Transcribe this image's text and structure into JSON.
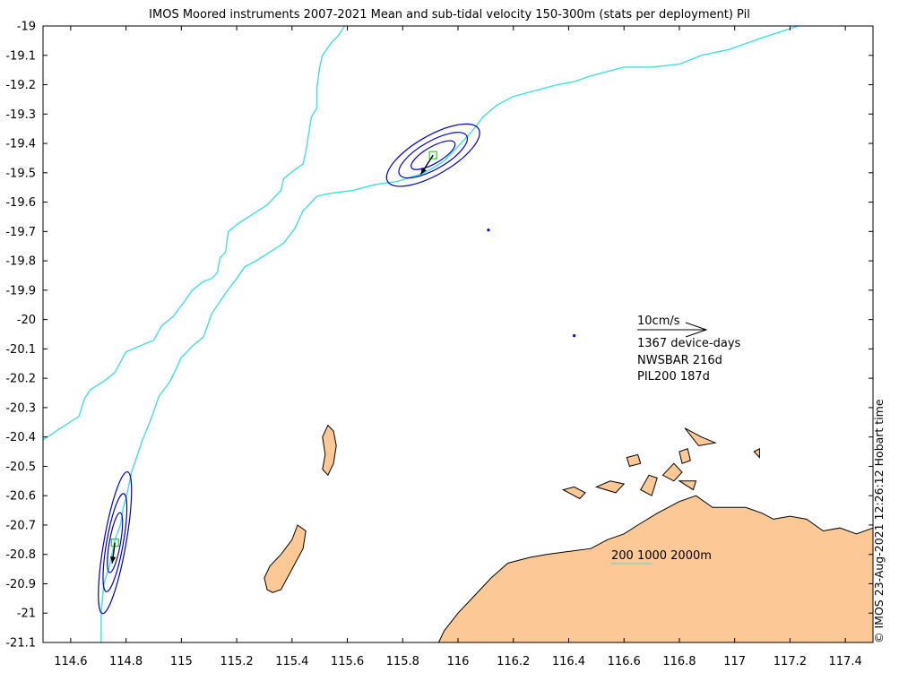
{
  "chart_data": {
    "type": "map",
    "title": "IMOS Moored instruments 2007-2021 Mean and sub-tidal velocity 150-300m (stats per deployment) Pil",
    "side_note": "© IMOS 23-Aug-2021 12:26:12 Hobart time",
    "xlim": [
      114.5,
      117.5
    ],
    "ylim": [
      -21.1,
      -19.0
    ],
    "xticks": [
      114.6,
      114.8,
      115,
      115.2,
      115.4,
      115.6,
      115.8,
      116,
      116.2,
      116.4,
      116.6,
      116.8,
      117,
      117.2,
      117.4
    ],
    "xtick_labels": [
      "114.6",
      "114.8",
      "115",
      "115.2",
      "115.4",
      "115.6",
      "115.8",
      "116",
      "116.2",
      "116.4",
      "116.6",
      "116.8",
      "117",
      "117.2",
      "117.4"
    ],
    "yticks": [
      -19,
      -19.1,
      -19.2,
      -19.3,
      -19.4,
      -19.5,
      -19.6,
      -19.7,
      -19.8,
      -19.9,
      -20,
      -20.1,
      -20.2,
      -20.3,
      -20.4,
      -20.5,
      -20.6,
      -20.7,
      -20.8,
      -20.9,
      -21,
      -21.1
    ],
    "ytick_labels": [
      "-19",
      "-19.1",
      "-19.2",
      "-19.3",
      "-19.4",
      "-19.5",
      "-19.6",
      "-19.7",
      "-19.8",
      "-19.9",
      "-20",
      "-20.1",
      "-20.2",
      "-20.3",
      "-20.4",
      "-20.5",
      "-20.6",
      "-20.7",
      "-20.8",
      "-20.9",
      "-21",
      "-21.1"
    ],
    "scale_arrow_label": "10cm/s",
    "stats_lines": [
      "1367 device-days",
      "NWSBAR 216d",
      "PIL200 187d"
    ],
    "contour_legend_label": "200 1000 2000m",
    "colors": {
      "land": "#fbc896",
      "coast": "#000000",
      "isobath": "#40dfdf",
      "ellipse": "#0000cc",
      "mean_arrow": "#000000",
      "subtidal_marker": "#22cc22",
      "station_dot": "#0000ff"
    },
    "isobaths": [
      {
        "points": [
          [
            114.5,
            -20.41
          ],
          [
            114.58,
            -20.36
          ],
          [
            114.63,
            -20.33
          ],
          [
            114.65,
            -20.27
          ],
          [
            114.67,
            -20.24
          ],
          [
            114.72,
            -20.21
          ],
          [
            114.76,
            -20.18
          ],
          [
            114.8,
            -20.11
          ],
          [
            114.85,
            -20.09
          ],
          [
            114.9,
            -20.07
          ],
          [
            114.93,
            -20.02
          ],
          [
            114.97,
            -19.99
          ],
          [
            115.01,
            -19.94
          ],
          [
            115.04,
            -19.9
          ],
          [
            115.08,
            -19.87
          ],
          [
            115.11,
            -19.86
          ],
          [
            115.13,
            -19.84
          ],
          [
            115.14,
            -19.79
          ],
          [
            115.16,
            -19.77
          ],
          [
            115.17,
            -19.7
          ],
          [
            115.21,
            -19.67
          ],
          [
            115.26,
            -19.64
          ],
          [
            115.31,
            -19.61
          ],
          [
            115.36,
            -19.56
          ],
          [
            115.37,
            -19.52
          ],
          [
            115.41,
            -19.49
          ],
          [
            115.44,
            -19.47
          ],
          [
            115.45,
            -19.43
          ],
          [
            115.46,
            -19.37
          ],
          [
            115.47,
            -19.31
          ],
          [
            115.49,
            -19.28
          ],
          [
            115.49,
            -19.21
          ],
          [
            115.5,
            -19.14
          ],
          [
            115.51,
            -19.1
          ],
          [
            115.54,
            -19.06
          ],
          [
            115.57,
            -19.03
          ],
          [
            115.59,
            -19.0
          ]
        ]
      },
      {
        "points": [
          [
            114.71,
            -21.1
          ],
          [
            114.71,
            -21.0
          ],
          [
            114.72,
            -20.9
          ],
          [
            114.74,
            -20.84
          ],
          [
            114.76,
            -20.75
          ],
          [
            114.78,
            -20.7
          ],
          [
            114.79,
            -20.64
          ],
          [
            114.8,
            -20.61
          ],
          [
            114.82,
            -20.52
          ],
          [
            114.86,
            -20.41
          ],
          [
            114.89,
            -20.34
          ],
          [
            114.92,
            -20.26
          ],
          [
            114.96,
            -20.21
          ],
          [
            115.0,
            -20.13
          ],
          [
            115.04,
            -20.09
          ],
          [
            115.08,
            -20.06
          ],
          [
            115.11,
            -19.98
          ],
          [
            115.16,
            -19.91
          ],
          [
            115.2,
            -19.86
          ],
          [
            115.23,
            -19.82
          ],
          [
            115.27,
            -19.8
          ],
          [
            115.32,
            -19.77
          ],
          [
            115.37,
            -19.74
          ],
          [
            115.41,
            -19.69
          ],
          [
            115.44,
            -19.63
          ],
          [
            115.49,
            -19.58
          ],
          [
            115.54,
            -19.57
          ],
          [
            115.62,
            -19.56
          ],
          [
            115.7,
            -19.54
          ],
          [
            115.78,
            -19.53
          ],
          [
            115.88,
            -19.5
          ],
          [
            115.95,
            -19.46
          ],
          [
            116.0,
            -19.41
          ],
          [
            116.05,
            -19.36
          ],
          [
            116.09,
            -19.31
          ],
          [
            116.14,
            -19.27
          ],
          [
            116.2,
            -19.24
          ],
          [
            116.28,
            -19.22
          ],
          [
            116.36,
            -19.2
          ],
          [
            116.42,
            -19.19
          ],
          [
            116.48,
            -19.17
          ],
          [
            116.6,
            -19.14
          ],
          [
            116.7,
            -19.14
          ],
          [
            116.8,
            -19.13
          ],
          [
            116.88,
            -19.1
          ],
          [
            116.98,
            -19.08
          ],
          [
            117.1,
            -19.04
          ],
          [
            117.23,
            -19.0
          ]
        ]
      }
    ],
    "stations": [
      {
        "name": "PIL200",
        "lon": 114.76,
        "lat": -20.76,
        "u": -0.4,
        "v": -3.0,
        "ellipses": [
          {
            "semi_major": 0.26,
            "semi_minor": 0.04,
            "angle_deg": 80
          },
          {
            "semi_major": 0.18,
            "semi_minor": 0.03,
            "angle_deg": 80
          },
          {
            "semi_major": 0.11,
            "semi_minor": 0.02,
            "angle_deg": 80
          }
        ]
      },
      {
        "name": "NWSBAR",
        "lon": 115.91,
        "lat": -19.44,
        "u": -1.8,
        "v": -2.8,
        "ellipses": [
          {
            "semi_major": 0.19,
            "semi_minor": 0.07,
            "angle_deg": 30
          },
          {
            "semi_major": 0.14,
            "semi_minor": 0.05,
            "angle_deg": 30
          },
          {
            "semi_major": 0.09,
            "semi_minor": 0.03,
            "angle_deg": 30
          }
        ]
      }
    ],
    "station_dots": [
      [
        116.11,
        -19.695
      ],
      [
        116.42,
        -20.055
      ]
    ],
    "islands": [
      {
        "points": [
          [
            115.42,
            -20.7
          ],
          [
            115.4,
            -20.75
          ],
          [
            115.36,
            -20.8
          ],
          [
            115.32,
            -20.84
          ],
          [
            115.3,
            -20.88
          ],
          [
            115.31,
            -20.92
          ],
          [
            115.33,
            -20.93
          ],
          [
            115.36,
            -20.92
          ],
          [
            115.4,
            -20.85
          ],
          [
            115.44,
            -20.78
          ],
          [
            115.45,
            -20.72
          ]
        ]
      },
      {
        "points": [
          [
            115.53,
            -20.36
          ],
          [
            115.51,
            -20.4
          ],
          [
            115.52,
            -20.46
          ],
          [
            115.51,
            -20.51
          ],
          [
            115.53,
            -20.53
          ],
          [
            115.55,
            -20.49
          ],
          [
            115.56,
            -20.43
          ],
          [
            115.55,
            -20.38
          ]
        ]
      },
      {
        "points": [
          [
            116.38,
            -20.58
          ],
          [
            116.42,
            -20.57
          ],
          [
            116.46,
            -20.59
          ],
          [
            116.44,
            -20.61
          ]
        ]
      },
      {
        "points": [
          [
            116.5,
            -20.57
          ],
          [
            116.55,
            -20.55
          ],
          [
            116.6,
            -20.56
          ],
          [
            116.57,
            -20.59
          ]
        ]
      },
      {
        "points": [
          [
            116.61,
            -20.47
          ],
          [
            116.65,
            -20.46
          ],
          [
            116.66,
            -20.49
          ],
          [
            116.62,
            -20.5
          ]
        ]
      },
      {
        "points": [
          [
            116.66,
            -20.58
          ],
          [
            116.69,
            -20.53
          ],
          [
            116.72,
            -20.54
          ],
          [
            116.7,
            -20.6
          ]
        ]
      },
      {
        "points": [
          [
            116.74,
            -20.53
          ],
          [
            116.78,
            -20.49
          ],
          [
            116.81,
            -20.52
          ],
          [
            116.78,
            -20.55
          ]
        ]
      },
      {
        "points": [
          [
            116.82,
            -20.37
          ],
          [
            116.88,
            -20.4
          ],
          [
            116.93,
            -20.42
          ],
          [
            116.87,
            -20.43
          ]
        ]
      },
      {
        "points": [
          [
            116.8,
            -20.45
          ],
          [
            116.83,
            -20.44
          ],
          [
            116.84,
            -20.48
          ],
          [
            116.81,
            -20.49
          ]
        ]
      },
      {
        "points": [
          [
            116.8,
            -20.55
          ],
          [
            116.86,
            -20.55
          ],
          [
            116.85,
            -20.58
          ]
        ]
      },
      {
        "points": [
          [
            117.07,
            -20.45
          ],
          [
            117.09,
            -20.44
          ],
          [
            117.09,
            -20.47
          ]
        ]
      }
    ],
    "mainland": {
      "points": [
        [
          115.93,
          -21.1
        ],
        [
          115.95,
          -21.06
        ],
        [
          116.0,
          -21.0
        ],
        [
          116.06,
          -20.94
        ],
        [
          116.12,
          -20.88
        ],
        [
          116.18,
          -20.83
        ],
        [
          116.26,
          -20.81
        ],
        [
          116.32,
          -20.8
        ],
        [
          116.4,
          -20.79
        ],
        [
          116.48,
          -20.78
        ],
        [
          116.54,
          -20.75
        ],
        [
          116.6,
          -20.73
        ],
        [
          116.65,
          -20.7
        ],
        [
          116.72,
          -20.66
        ],
        [
          116.76,
          -20.64
        ],
        [
          116.8,
          -20.62
        ],
        [
          116.86,
          -20.6
        ],
        [
          116.92,
          -20.64
        ],
        [
          116.98,
          -20.64
        ],
        [
          117.04,
          -20.64
        ],
        [
          117.1,
          -20.66
        ],
        [
          117.14,
          -20.68
        ],
        [
          117.2,
          -20.67
        ],
        [
          117.26,
          -20.68
        ],
        [
          117.32,
          -20.72
        ],
        [
          117.38,
          -20.71
        ],
        [
          117.44,
          -20.73
        ],
        [
          117.5,
          -20.71
        ],
        [
          117.5,
          -21.1
        ]
      ]
    }
  }
}
